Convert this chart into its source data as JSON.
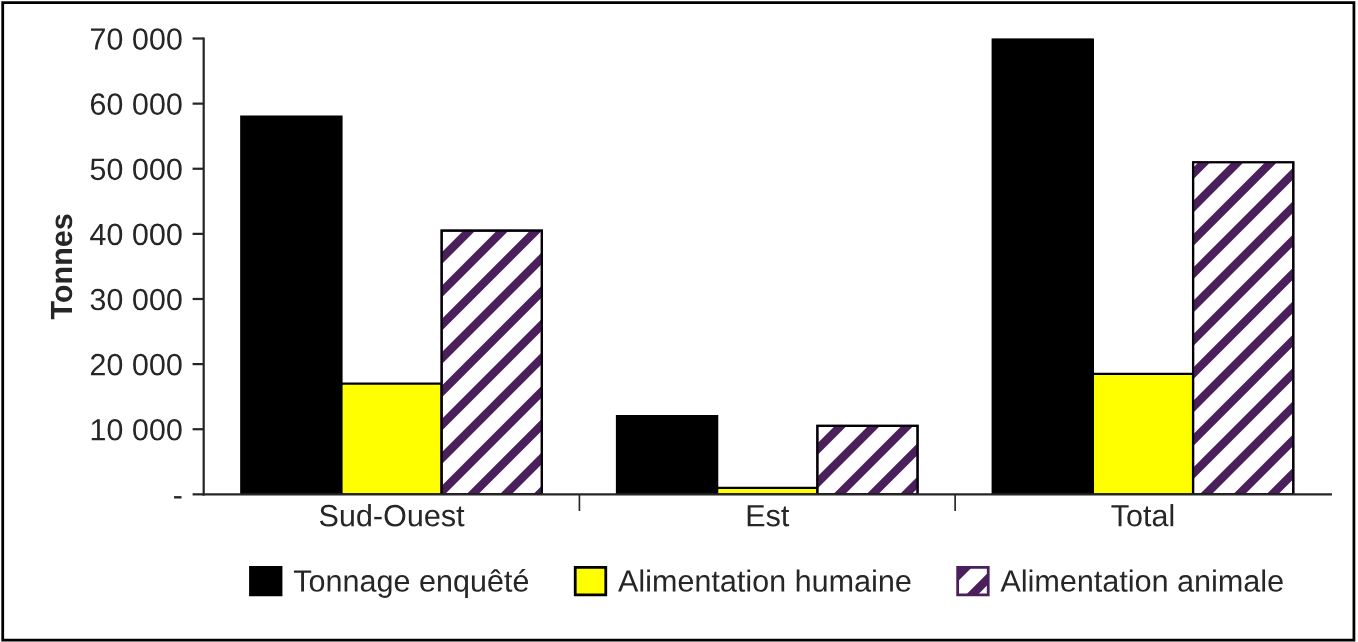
{
  "chart_data": {
    "type": "bar",
    "ylabel": "Tonnes",
    "categories": [
      "Sud-Ouest",
      "Est",
      "Total"
    ],
    "series": [
      {
        "name": "Tonnage enquêté",
        "color": "#000000",
        "values": [
          58000,
          12000,
          70000
        ]
      },
      {
        "name": "Alimentation humaine",
        "color": "#ffff00",
        "values": [
          17000,
          1000,
          18500
        ]
      },
      {
        "name": "Alimentation animale",
        "color": "#4b1f5c",
        "values": [
          40500,
          10500,
          51000
        ]
      }
    ],
    "ylim": [
      0,
      70000
    ],
    "yticks": [
      {
        "value": 0,
        "label": "-"
      },
      {
        "value": 10000,
        "label": "10 000"
      },
      {
        "value": 20000,
        "label": "20 000"
      },
      {
        "value": 30000,
        "label": "30 000"
      },
      {
        "value": 40000,
        "label": "40 000"
      },
      {
        "value": 50000,
        "label": "50 000"
      },
      {
        "value": 60000,
        "label": "60 000"
      },
      {
        "value": 70000,
        "label": "70 000"
      }
    ],
    "grid": false,
    "legend": "bottom"
  }
}
